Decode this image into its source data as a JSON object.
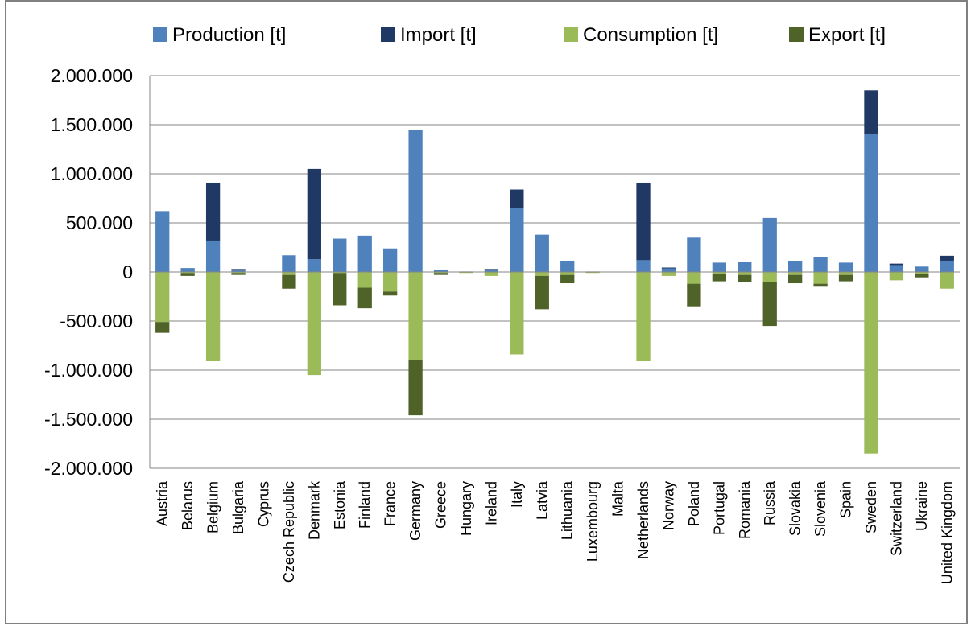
{
  "chart_data": {
    "type": "bar",
    "stacked": true,
    "title": "",
    "xlabel": "",
    "ylabel": "",
    "ylim": [
      -2000000,
      2000000
    ],
    "y_ticks": [
      2000000,
      1500000,
      1000000,
      500000,
      0,
      -500000,
      -1000000,
      -1500000,
      -2000000
    ],
    "y_tick_labels": [
      "2.000.000",
      "1.500.000",
      "1.000.000",
      "500.000",
      "0",
      "-500.000",
      "-1.000.000",
      "-1.500.000",
      "-2.000.000"
    ],
    "grid": true,
    "legend_position": "top",
    "categories": [
      "Austria",
      "Belarus",
      "Belgium",
      "Bulgaria",
      "Cyprus",
      "Czech Republic",
      "Denmark",
      "Estonia",
      "Finland",
      "France",
      "Germany",
      "Greece",
      "Hungary",
      "Ireland",
      "Italy",
      "Latvia",
      "Lithuania",
      "Luxembourg",
      "Malta",
      "Netherlands",
      "Norway",
      "Poland",
      "Portugal",
      "Romania",
      "Russia",
      "Slovakia",
      "Slovenia",
      "Spain",
      "Sweden",
      "Switzerland",
      "Ukraine",
      "United Kingdom"
    ],
    "series": [
      {
        "name": "Production [t]",
        "color": "#4f81bd",
        "values": [
          620000,
          40000,
          320000,
          25000,
          0,
          170000,
          130000,
          340000,
          370000,
          240000,
          1450000,
          25000,
          5000,
          25000,
          650000,
          380000,
          115000,
          5000,
          0,
          120000,
          40000,
          350000,
          95000,
          105000,
          550000,
          115000,
          150000,
          95000,
          1410000,
          70000,
          55000,
          115000
        ]
      },
      {
        "name": "Import [t]",
        "color": "#1f3864",
        "values": [
          0,
          0,
          590000,
          5000,
          0,
          0,
          920000,
          0,
          0,
          0,
          0,
          0,
          0,
          5000,
          190000,
          0,
          0,
          0,
          0,
          790000,
          5000,
          0,
          0,
          0,
          0,
          0,
          0,
          0,
          440000,
          15000,
          0,
          50000
        ]
      },
      {
        "name": "Consumption [t]",
        "color": "#9bbb59",
        "values": [
          -510000,
          -10000,
          -910000,
          -10000,
          0,
          -30000,
          -1050000,
          -10000,
          -160000,
          -200000,
          -900000,
          -10000,
          -10000,
          -40000,
          -840000,
          -40000,
          -30000,
          -10000,
          0,
          -910000,
          -40000,
          -120000,
          -20000,
          -30000,
          -100000,
          -30000,
          -120000,
          -30000,
          -1850000,
          -85000,
          -20000,
          -170000
        ]
      },
      {
        "name": "Export [t]",
        "color": "#4f6228",
        "values": [
          -110000,
          -30000,
          0,
          -20000,
          0,
          -140000,
          0,
          -330000,
          -210000,
          -40000,
          -560000,
          -20000,
          0,
          0,
          0,
          -340000,
          -85000,
          0,
          0,
          0,
          0,
          -230000,
          -75000,
          -75000,
          -450000,
          -85000,
          -30000,
          -65000,
          0,
          0,
          -35000,
          0
        ]
      }
    ]
  }
}
